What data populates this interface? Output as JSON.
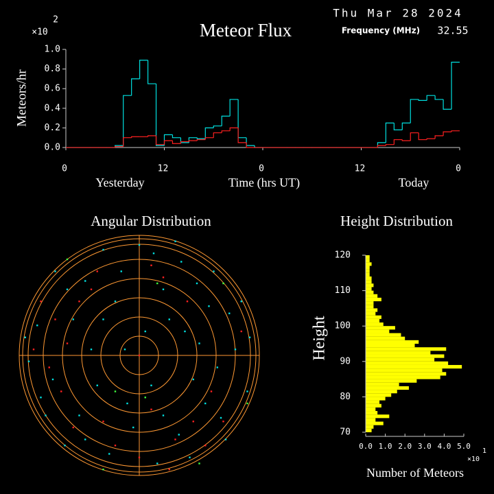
{
  "header": {
    "date": "Thu Mar 28 2024",
    "frequency_label": "Frequency (MHz)",
    "frequency": 32.55
  },
  "chart_data": [
    {
      "type": "step",
      "title": "Meteor Flux",
      "y_label": "Meteors/hr",
      "y_scale_base": "×10",
      "y_scale_exponent": "2",
      "x_label": "Time (hrs UT)",
      "day_labels": [
        "Yesterday",
        "Today"
      ],
      "xlim": [
        0,
        48
      ],
      "ylim": [
        0,
        1
      ],
      "xticks": [
        {
          "value": 0,
          "label": "0"
        },
        {
          "value": 12,
          "label": "12"
        },
        {
          "value": 24,
          "label": "0"
        },
        {
          "value": 36,
          "label": "12"
        },
        {
          "value": 48,
          "label": "0"
        }
      ],
      "yticks": [
        {
          "value": 0,
          "label": "0.0"
        },
        {
          "value": 0.2,
          "label": "0.2"
        },
        {
          "value": 0.4,
          "label": "0.4"
        },
        {
          "value": 0.6,
          "label": "0.6"
        },
        {
          "value": 0.8,
          "label": "0.8"
        },
        {
          "value": 1,
          "label": "1.0"
        }
      ],
      "x": [
        0,
        1,
        2,
        3,
        4,
        5,
        6,
        7,
        8,
        9,
        10,
        11,
        12,
        13,
        14,
        15,
        16,
        17,
        18,
        19,
        20,
        21,
        22,
        23,
        24,
        25,
        26,
        27,
        28,
        29,
        30,
        31,
        32,
        33,
        34,
        35,
        36,
        37,
        38,
        39,
        40,
        41,
        42,
        43,
        44,
        45,
        46,
        47
      ],
      "series": [
        {
          "color": "#00e0e0",
          "values": [
            0,
            0,
            0,
            0,
            0,
            0,
            0.02,
            0.53,
            0.7,
            0.89,
            0.65,
            0.02,
            0.13,
            0.1,
            0.05,
            0.1,
            0.09,
            0.2,
            0.22,
            0.32,
            0.49,
            0.1,
            0.02,
            0,
            0,
            0,
            0,
            0,
            0,
            0,
            0,
            0,
            0,
            0,
            0,
            0,
            0,
            0,
            0.05,
            0.25,
            0.18,
            0.25,
            0.49,
            0.48,
            0.53,
            0.49,
            0.39,
            0.87
          ]
        },
        {
          "color": "#ff2020",
          "values": [
            0,
            0,
            0,
            0,
            0,
            0,
            0.01,
            0.1,
            0.11,
            0.11,
            0.12,
            0.03,
            0.07,
            0.04,
            0.06,
            0.07,
            0.08,
            0.1,
            0.15,
            0.17,
            0.2,
            0.05,
            0,
            0,
            0,
            0,
            0,
            0,
            0,
            0,
            0,
            0,
            0,
            0,
            0,
            0,
            0,
            0,
            0.02,
            0.03,
            0.08,
            0.07,
            0.15,
            0.08,
            0.09,
            0.12,
            0.16,
            0.17
          ]
        }
      ]
    },
    {
      "type": "polar-scatter",
      "title": "Angular Distribution",
      "xlim": [
        -1,
        1
      ],
      "ylim": [
        -1,
        1
      ],
      "series": [
        {
          "color": "#00e0e0",
          "x": [
            0.12,
            -0.45,
            0.58,
            -0.72,
            0.33,
            -0.1,
            0.8,
            -0.3,
            0.45,
            -0.6,
            0.2,
            -0.85,
            0.68,
            -0.25,
            0.05,
            0.9,
            -0.5,
            0.35,
            -0.15,
            0.62,
            -0.78,
            0.15,
            -0.4,
            0.5,
            -0.05,
            0.75,
            -0.92,
            0.25,
            -0.62,
            0.42,
            -0.2,
            0.85,
            -0.35,
            0.1,
            0.55,
            -0.7,
            0.3,
            -0.55,
            0.65,
            -0.82,
            0,
            -0.3,
            0.48,
            -0.45,
            0.2,
            0.72,
            -0.12,
            0.38,
            -0.95,
            0.92
          ],
          "y": [
            0.85,
            0.62,
            0.41,
            -0.2,
            -0.66,
            -0.4,
            0.05,
            0.3,
            -0.2,
            0.55,
            0.55,
            0.25,
            -0.52,
            -0.82,
            0.2,
            -0.3,
            -0.5,
            0.78,
            0.7,
            0.7,
            -0.5,
            -0.9,
            0.05,
            0.1,
            -0.6,
            0.35,
            -0.05,
            0.3,
            -0.75,
            -0.85,
            0.45,
            0.45,
            -0.25,
            -0.25,
            -0.4,
            0.7,
            0.95,
            0.3,
            -0.1,
            -0.35,
            0.92,
            0.88,
            0.6,
            -0.7,
            -0.5,
            -0.7,
            0.05,
            0.2,
            0.15,
            0.15
          ]
        },
        {
          "color": "#ff2020",
          "x": [
            -0.7,
            -0.6,
            -0.75,
            -0.5,
            -0.65,
            0.3,
            0.1,
            -0.2,
            0.55,
            0.4,
            -0.35,
            0.1,
            0.85,
            -0.55,
            0.6,
            -0.82,
            0,
            0.45,
            -0.4,
            0.2,
            -0.3,
            0.7,
            -0.88,
            0,
            0.25
          ],
          "y": [
            0.3,
            0.1,
            -0.1,
            0.45,
            -0.3,
            -0.7,
            -0.45,
            -0.75,
            -0.75,
            0.45,
            0.7,
            0.75,
            0.2,
            -0.6,
            -0.3,
            0.45,
            -0.85,
            -0.55,
            0.55,
            0.65,
            -0.55,
            -0.55,
            0.05,
            0,
            -0.95
          ]
        },
        {
          "color": "#40ff40",
          "x": [
            0.15,
            -0.2,
            0.5,
            -0.6,
            0.7,
            -0.3,
            0.9,
            0.05
          ],
          "y": [
            0.6,
            -0.3,
            -0.9,
            0.8,
            0.6,
            -0.95,
            -0.4,
            -0.35
          ]
        }
      ]
    },
    {
      "type": "histogram-horizontal",
      "title": "Height Distribution",
      "y_label": "Height",
      "x_label": "Number of Meteors",
      "x_scale_base": "×10",
      "x_scale_exponent": "1",
      "color": "#ffff00",
      "ylim": [
        70,
        120
      ],
      "yticks": [
        70,
        80,
        90,
        100,
        110,
        120
      ],
      "xlim": [
        0,
        5
      ],
      "xticks": [
        {
          "value": 0,
          "label": "0.0"
        },
        {
          "value": 1,
          "label": "1.0"
        },
        {
          "value": 2,
          "label": "2.0"
        },
        {
          "value": 3,
          "label": "3.0"
        },
        {
          "value": 4,
          "label": "4.0"
        },
        {
          "value": 5,
          "label": "5.0"
        }
      ],
      "bins": [
        70,
        71,
        72,
        73,
        74,
        75,
        76,
        77,
        78,
        79,
        80,
        81,
        82,
        83,
        84,
        85,
        86,
        87,
        88,
        89,
        90,
        91,
        92,
        93,
        94,
        95,
        96,
        97,
        98,
        99,
        100,
        101,
        102,
        103,
        104,
        105,
        106,
        107,
        108,
        109,
        110,
        111,
        112,
        113,
        114,
        115,
        116,
        117,
        118,
        119,
        120
      ],
      "values": [
        0.3,
        0.4,
        0.9,
        0.5,
        1.2,
        0.6,
        0.5,
        0.8,
        0.7,
        1.0,
        1.3,
        1.6,
        2.2,
        1.7,
        2.6,
        3.8,
        4.1,
        3.9,
        4.9,
        4.2,
        3.5,
        4.0,
        3.3,
        4.1,
        2.5,
        2.7,
        2.0,
        1.8,
        1.2,
        1.5,
        0.9,
        0.7,
        0.8,
        0.5,
        0.6,
        0.4,
        0.4,
        0.8,
        0.6,
        0.4,
        0.3,
        0.4,
        0.3,
        0.3,
        0.2,
        0.2,
        0.2,
        0.3,
        0.2,
        0.2
      ]
    }
  ]
}
